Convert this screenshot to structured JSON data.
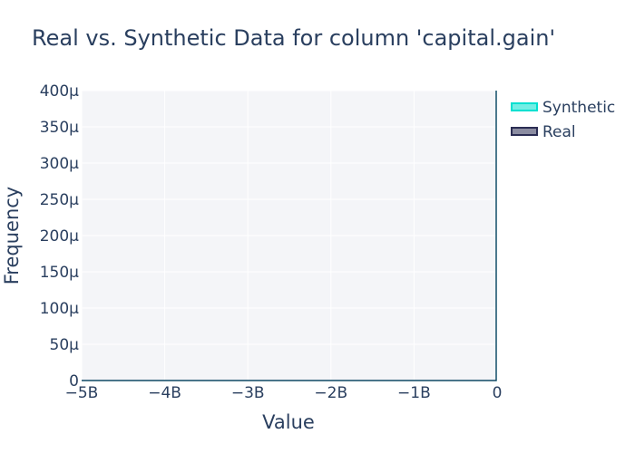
{
  "chart_data": {
    "type": "area",
    "title": "Real vs. Synthetic Data for column 'capital.gain'",
    "xlabel": "Value",
    "ylabel": "Frequency",
    "xlim": [
      -5000000000,
      0
    ],
    "ylim": [
      0,
      0.0004
    ],
    "x_ticks": [
      "−5B",
      "−4B",
      "−3B",
      "−2B",
      "−1B",
      "0"
    ],
    "y_ticks": [
      "0",
      "50µ",
      "100µ",
      "150µ",
      "200µ",
      "250µ",
      "300µ",
      "350µ",
      "400µ"
    ],
    "grid": true,
    "legend_position": "top-right",
    "series": [
      {
        "name": "Synthetic",
        "color": "#00e0d0",
        "x": [
          -5000000000,
          -4000000000,
          -3000000000,
          -2000000000,
          -1000000000,
          -1,
          0
        ],
        "values": [
          0,
          0,
          0,
          0,
          0,
          0,
          0.0004
        ]
      },
      {
        "name": "Real",
        "color": "#2b2d53",
        "x": [
          -5000000000,
          -4000000000,
          -3000000000,
          -2000000000,
          -1000000000,
          -1,
          0
        ],
        "values": [
          0,
          0,
          0,
          0,
          0,
          0,
          0.0004
        ]
      }
    ]
  }
}
